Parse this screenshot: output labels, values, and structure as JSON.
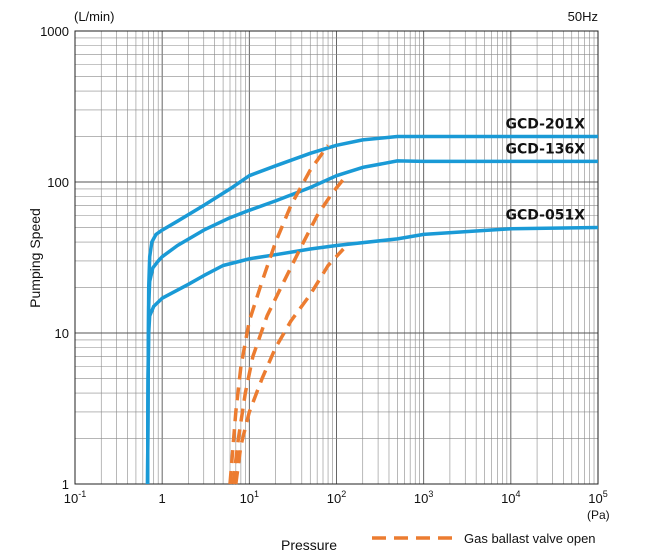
{
  "chart_data": {
    "type": "line",
    "title": "",
    "xlabel": "Pressure",
    "ylabel": "Pumping Speed",
    "x_unit": "(Pa)",
    "y_unit": "(L/min)",
    "frequency_note": "50Hz",
    "x_scale": "log",
    "y_scale": "log",
    "xlim": [
      0.1,
      100000
    ],
    "ylim": [
      1,
      1000
    ],
    "grid": true,
    "x_ticks": [
      {
        "value": 0.1,
        "base": "10",
        "exp": "-1"
      },
      {
        "value": 1,
        "base": "1",
        "exp": ""
      },
      {
        "value": 10,
        "base": "10",
        "exp": "1"
      },
      {
        "value": 100,
        "base": "10",
        "exp": "2"
      },
      {
        "value": 1000,
        "base": "10",
        "exp": "3"
      },
      {
        "value": 10000,
        "base": "10",
        "exp": "4"
      },
      {
        "value": 100000,
        "base": "10",
        "exp": "5"
      }
    ],
    "y_ticks": [
      {
        "value": 1,
        "label": "1"
      },
      {
        "value": 10,
        "label": "10"
      },
      {
        "value": 100,
        "label": "100"
      },
      {
        "value": 1000,
        "label": "1000"
      }
    ],
    "series": [
      {
        "name": "GCD-201X",
        "color": "#1a9ad6",
        "style": "solid",
        "points": [
          [
            0.68,
            1
          ],
          [
            0.69,
            5
          ],
          [
            0.7,
            20
          ],
          [
            0.72,
            32
          ],
          [
            0.76,
            40
          ],
          [
            0.85,
            45
          ],
          [
            1,
            48
          ],
          [
            1.5,
            55
          ],
          [
            3,
            70
          ],
          [
            6,
            90
          ],
          [
            10,
            110
          ],
          [
            20,
            128
          ],
          [
            50,
            155
          ],
          [
            100,
            175
          ],
          [
            200,
            190
          ],
          [
            500,
            200
          ],
          [
            1000,
            200
          ],
          [
            10000,
            200
          ],
          [
            100000,
            200
          ]
        ]
      },
      {
        "name": "GCD-136X",
        "color": "#1a9ad6",
        "style": "solid",
        "points": [
          [
            0.68,
            1
          ],
          [
            0.69,
            5
          ],
          [
            0.7,
            15
          ],
          [
            0.72,
            22
          ],
          [
            0.78,
            27
          ],
          [
            0.9,
            30
          ],
          [
            1,
            32
          ],
          [
            1.5,
            38
          ],
          [
            3,
            48
          ],
          [
            6,
            58
          ],
          [
            10,
            65
          ],
          [
            20,
            75
          ],
          [
            50,
            92
          ],
          [
            100,
            110
          ],
          [
            200,
            125
          ],
          [
            500,
            138
          ],
          [
            1000,
            137
          ],
          [
            10000,
            137
          ],
          [
            100000,
            137
          ]
        ]
      },
      {
        "name": "GCD-051X",
        "color": "#1a9ad6",
        "style": "solid",
        "points": [
          [
            0.68,
            1
          ],
          [
            0.69,
            5
          ],
          [
            0.7,
            10
          ],
          [
            0.72,
            13
          ],
          [
            0.8,
            15
          ],
          [
            1,
            17
          ],
          [
            2,
            21
          ],
          [
            3,
            24
          ],
          [
            5,
            28
          ],
          [
            8,
            30
          ],
          [
            10,
            31
          ],
          [
            20,
            33
          ],
          [
            50,
            36
          ],
          [
            100,
            38
          ],
          [
            500,
            42
          ],
          [
            1000,
            45
          ],
          [
            10000,
            49
          ],
          [
            100000,
            50
          ]
        ]
      },
      {
        "name": "Gas ballast valve open",
        "color": "#ec7c30",
        "style": "dashed",
        "points": [
          [
            6,
            1
          ],
          [
            7,
            3
          ],
          [
            8,
            6
          ],
          [
            10,
            12
          ],
          [
            14,
            22
          ],
          [
            20,
            40
          ],
          [
            30,
            70
          ],
          [
            50,
            120
          ],
          [
            80,
            175
          ]
        ]
      },
      {
        "name": "",
        "color": "#ec7c30",
        "style": "dashed",
        "points": [
          [
            6.5,
            1
          ],
          [
            7.5,
            2
          ],
          [
            9,
            4
          ],
          [
            11,
            7
          ],
          [
            16,
            13
          ],
          [
            25,
            22
          ],
          [
            40,
            38
          ],
          [
            60,
            60
          ],
          [
            90,
            85
          ],
          [
            130,
            110
          ]
        ]
      },
      {
        "name": "",
        "color": "#ec7c30",
        "style": "dashed",
        "points": [
          [
            7,
            1
          ],
          [
            8,
            1.8
          ],
          [
            10,
            3
          ],
          [
            14,
            5
          ],
          [
            20,
            8
          ],
          [
            30,
            12
          ],
          [
            50,
            18
          ],
          [
            80,
            28
          ],
          [
            120,
            36
          ]
        ]
      }
    ],
    "series_labels": [
      "GCD-201X",
      "GCD-136X",
      "GCD-051X"
    ],
    "legend": {
      "entries": [
        "Gas ballast valve open"
      ],
      "placement": "bottom-right"
    }
  }
}
